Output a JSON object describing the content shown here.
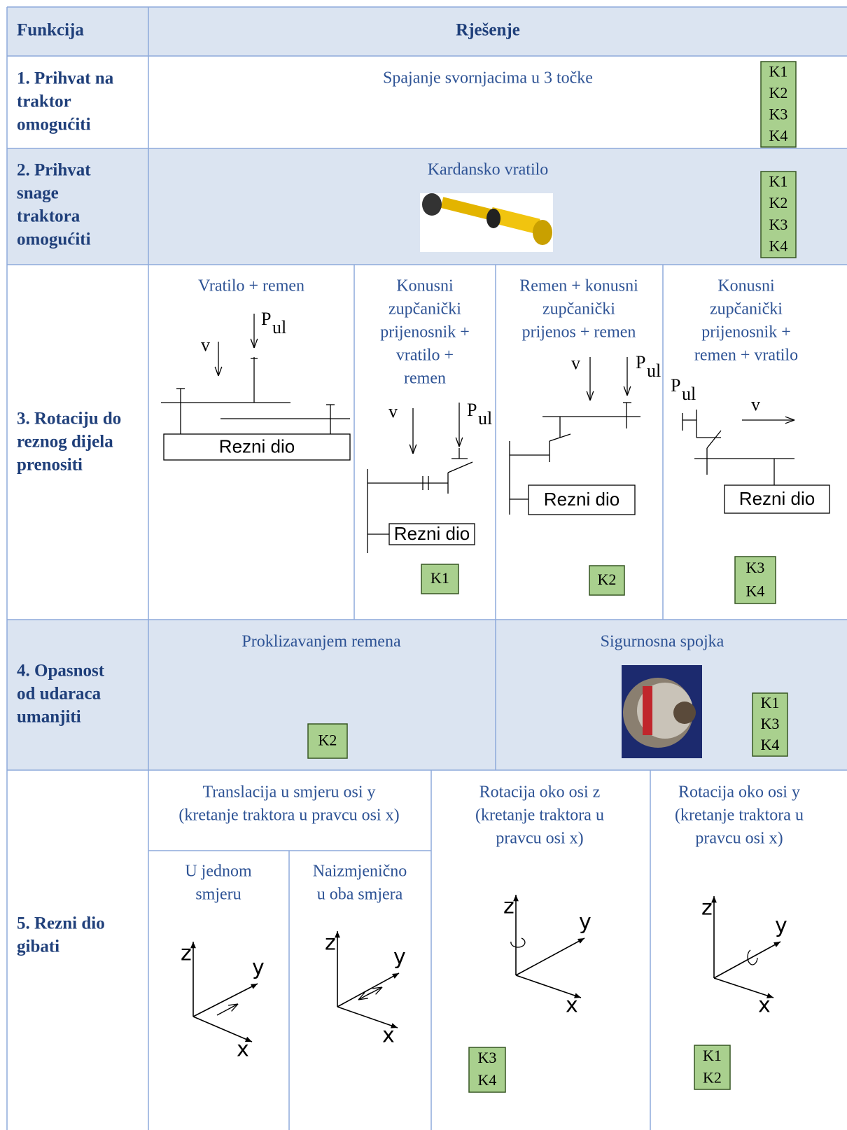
{
  "header": {
    "function": "Funkcija",
    "solution": "Rješenje"
  },
  "rows": [
    {
      "function_lines": [
        "1. Prihvat na",
        "traktor",
        "omogućiti"
      ],
      "solutions": [
        {
          "title_lines": [
            "Spajanje svornjacima u 3 točke"
          ],
          "concepts": [
            "K1",
            "K2",
            "K3",
            "K4"
          ]
        }
      ]
    },
    {
      "function_lines": [
        "2. Prihvat",
        "snage",
        "traktora",
        "omogućiti"
      ],
      "solutions": [
        {
          "title_lines": [
            "Kardansko vratilo"
          ],
          "concepts": [
            "K1",
            "K2",
            "K3",
            "K4"
          ]
        }
      ]
    },
    {
      "function_lines": [
        "3. Rotaciju do",
        "reznog dijela",
        "prenositi"
      ],
      "solutions": [
        {
          "title_lines": [
            "Vratilo + remen"
          ],
          "diagram": {
            "force": "P",
            "force_index": "ul",
            "speed": "v",
            "cutter": "Rezni dio"
          }
        },
        {
          "title_lines": [
            "Konusni",
            "zupčanički",
            "prijenosnik +",
            "vratilo +",
            "remen"
          ],
          "diagram": {
            "force": "P",
            "force_index": "ul",
            "speed": "v",
            "cutter": "Rezni dio"
          },
          "concepts": [
            "K1"
          ]
        },
        {
          "title_lines": [
            "Remen + konusni",
            "zupčanički",
            "prijenos + remen"
          ],
          "diagram": {
            "force": "P",
            "force_index": "ul",
            "speed": "v",
            "cutter": "Rezni dio"
          },
          "concepts": [
            "K2"
          ]
        },
        {
          "title_lines": [
            "Konusni",
            "zupčanički",
            "prijenosnik +",
            "remen + vratilo"
          ],
          "diagram": {
            "force": "P",
            "force_index": "ul",
            "speed": "v",
            "cutter": "Rezni dio"
          },
          "concepts": [
            "K3",
            "K4"
          ]
        }
      ]
    },
    {
      "function_lines": [
        "4. Opasnost",
        "od udaraca",
        "umanjiti"
      ],
      "solutions": [
        {
          "title_lines": [
            "Proklizavanjem remena"
          ],
          "concepts": [
            "K2"
          ]
        },
        {
          "title_lines": [
            "Sigurnosna spojka"
          ],
          "concepts": [
            "K1",
            "K3",
            "K4"
          ]
        }
      ]
    },
    {
      "function_lines": [
        "5. Rezni dio",
        "gibati"
      ],
      "solutions": [
        {
          "title_lines": [
            "Translacija u smjeru osi y",
            "(kretanje traktora u pravcu osi x)"
          ],
          "variants": [
            {
              "title_lines": [
                "U jednom",
                "smjeru"
              ],
              "axes": [
                "z",
                "y",
                "x"
              ]
            },
            {
              "title_lines": [
                "Naizmjenično",
                "u oba smjera"
              ],
              "axes": [
                "z",
                "y",
                "x"
              ]
            }
          ]
        },
        {
          "title_lines": [
            "Rotacija oko osi z",
            "(kretanje traktora u",
            "pravcu osi x)"
          ],
          "axes": [
            "z",
            "y",
            "x"
          ],
          "concepts": [
            "K3",
            "K4"
          ]
        },
        {
          "title_lines": [
            "Rotacija oko osi y",
            "(kretanje traktora u",
            "pravcu osi x)"
          ],
          "axes": [
            "z",
            "y",
            "x"
          ],
          "concepts": [
            "K1",
            "K2"
          ]
        }
      ]
    }
  ]
}
